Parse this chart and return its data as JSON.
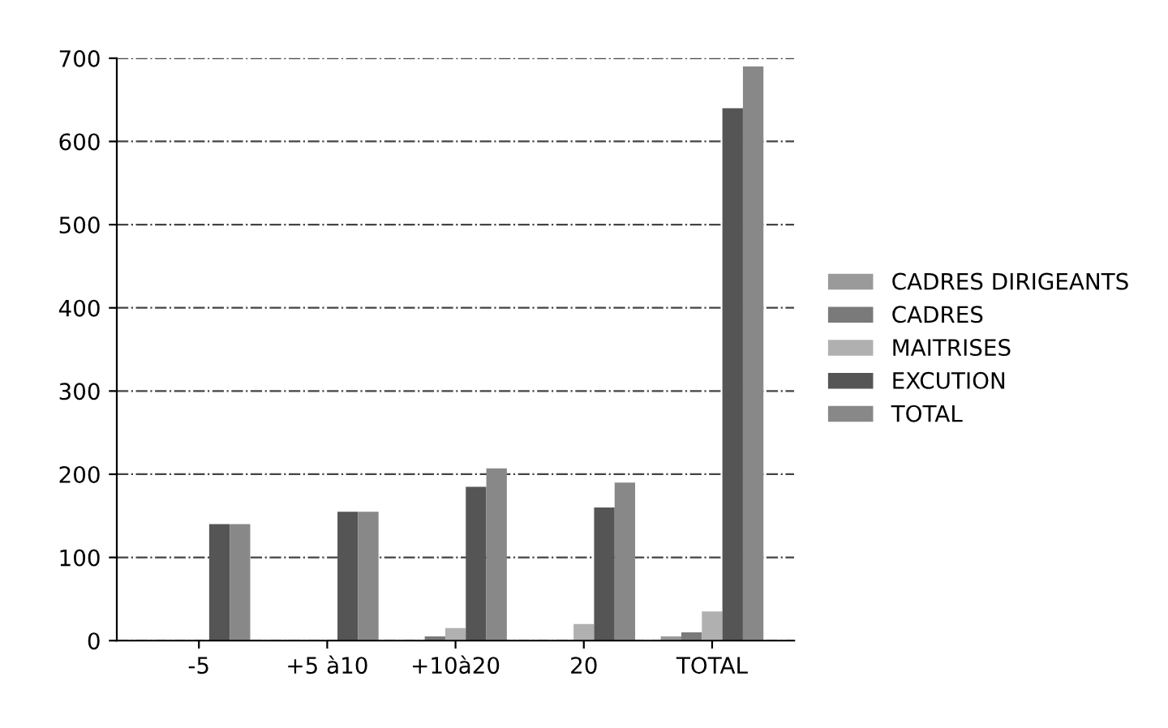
{
  "chart_data": {
    "type": "bar",
    "categories": [
      "-5",
      "+5 à10",
      "+10à20",
      "20",
      "TOTAL"
    ],
    "series": [
      {
        "name": "CADRES DIRIGEANTS",
        "color": "#9a9a9a",
        "values": [
          0,
          0,
          null,
          null,
          5
        ]
      },
      {
        "name": "CADRES",
        "color": "#7a7a7a",
        "values": [
          0,
          0,
          5,
          null,
          10
        ]
      },
      {
        "name": "MAITRISES",
        "color": "#b0b0b0",
        "values": [
          0,
          0,
          15,
          20,
          35
        ]
      },
      {
        "name": "EXCUTION",
        "color": "#555555",
        "values": [
          140,
          155,
          185,
          160,
          640
        ]
      },
      {
        "name": "TOTAL",
        "color": "#888888",
        "values": [
          140,
          155,
          207,
          190,
          690
        ]
      }
    ],
    "ylim": [
      0,
      700
    ],
    "yticks": [
      0,
      100,
      200,
      300,
      400,
      500,
      600,
      700
    ],
    "grid": "y",
    "legend": "right"
  }
}
